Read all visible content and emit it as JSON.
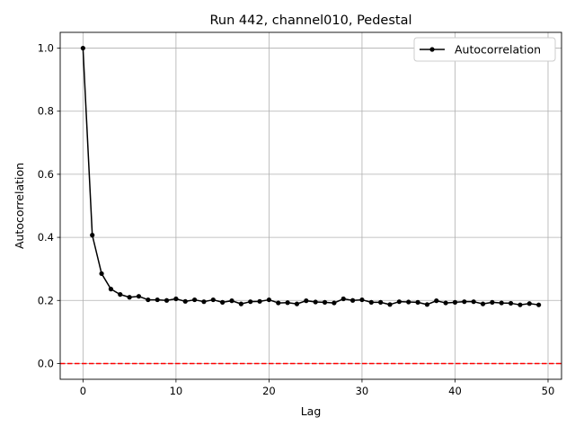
{
  "chart_data": {
    "type": "line",
    "title": "Run 442, channel010, Pedestal",
    "xlabel": "Lag",
    "ylabel": "Autocorrelation",
    "xlim": [
      -2.45,
      51.45
    ],
    "ylim": [
      -0.05,
      1.05
    ],
    "xticks": [
      0,
      10,
      20,
      30,
      40,
      50
    ],
    "xtick_labels": [
      "0",
      "10",
      "20",
      "30",
      "40",
      "50"
    ],
    "yticks": [
      0.0,
      0.2,
      0.4,
      0.6,
      0.8,
      1.0
    ],
    "ytick_labels": [
      "0.0",
      "0.2",
      "0.4",
      "0.6",
      "0.8",
      "1.0"
    ],
    "grid": true,
    "legend_position": "top-right",
    "series": [
      {
        "name": "Autocorrelation",
        "color": "#000000",
        "marker": "circle",
        "x": [
          0,
          1,
          2,
          3,
          4,
          5,
          6,
          7,
          8,
          9,
          10,
          11,
          12,
          13,
          14,
          15,
          16,
          17,
          18,
          19,
          20,
          21,
          22,
          23,
          24,
          25,
          26,
          27,
          28,
          29,
          30,
          31,
          32,
          33,
          34,
          35,
          36,
          37,
          38,
          39,
          40,
          41,
          42,
          43,
          44,
          45,
          46,
          47,
          48,
          49
        ],
        "values": [
          1.0,
          0.407,
          0.285,
          0.236,
          0.219,
          0.21,
          0.213,
          0.202,
          0.202,
          0.2,
          0.205,
          0.197,
          0.202,
          0.196,
          0.202,
          0.194,
          0.199,
          0.189,
          0.196,
          0.197,
          0.202,
          0.192,
          0.193,
          0.189,
          0.199,
          0.195,
          0.194,
          0.192,
          0.205,
          0.2,
          0.202,
          0.194,
          0.194,
          0.187,
          0.196,
          0.195,
          0.194,
          0.187,
          0.199,
          0.192,
          0.194,
          0.196,
          0.196,
          0.189,
          0.194,
          0.192,
          0.191,
          0.186,
          0.19,
          0.186
        ]
      }
    ],
    "reference_line": {
      "y": 0,
      "color": "#ff0000",
      "style": "dashed"
    }
  }
}
